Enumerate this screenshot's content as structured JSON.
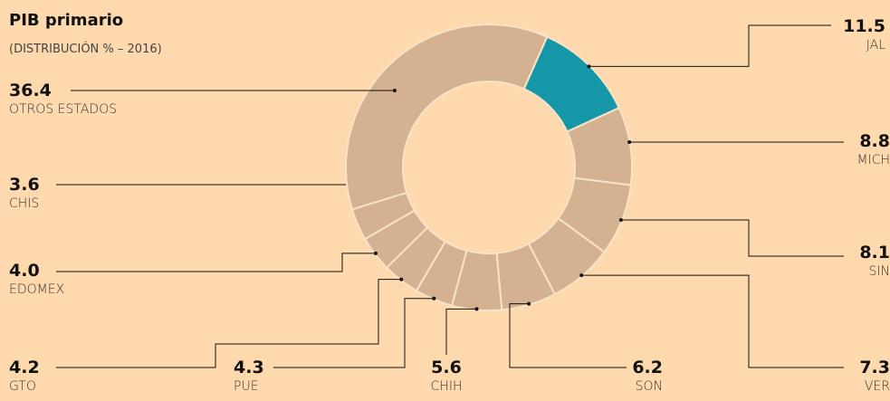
{
  "chart_data": {
    "type": "donut",
    "title": "PIB primario",
    "subtitle": "(DISTRIBUCIÓN % – 2016)",
    "categories": [
      "JAL",
      "MICH",
      "SIN",
      "VER",
      "SON",
      "CHIH",
      "PUE",
      "GTO",
      "EDOMEX",
      "CHIS",
      "OTROS ESTADOS"
    ],
    "values": [
      11.5,
      8.8,
      8.1,
      7.3,
      6.2,
      5.6,
      4.3,
      4.2,
      4.0,
      3.6,
      36.4
    ],
    "value_labels": [
      "11.5",
      "8.8",
      "8.1",
      "7.3",
      "6.2",
      "5.6",
      "4.3",
      "4.2",
      "4.0",
      "3.6",
      "36.4"
    ],
    "colors": [
      "#1597a7",
      "#d4b191",
      "#d4b191",
      "#d4b191",
      "#d4b191",
      "#d4b191",
      "#d4b191",
      "#d4b191",
      "#d4b191",
      "#d4b191",
      "#d4b191"
    ]
  }
}
